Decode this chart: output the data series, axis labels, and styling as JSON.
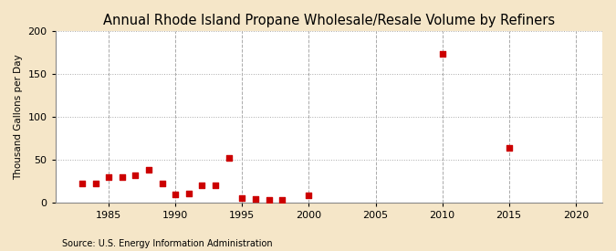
{
  "title": "Annual Rhode Island Propane Wholesale/Resale Volume by Refiners",
  "ylabel": "Thousand Gallons per Day",
  "source": "Source: U.S. Energy Information Administration",
  "background_color": "#f5e6c8",
  "plot_bg_color": "#ffffff",
  "data": [
    [
      1983,
      22
    ],
    [
      1984,
      22
    ],
    [
      1985,
      29
    ],
    [
      1986,
      30
    ],
    [
      1987,
      32
    ],
    [
      1988,
      38
    ],
    [
      1989,
      22
    ],
    [
      1990,
      9
    ],
    [
      1991,
      10
    ],
    [
      1992,
      20
    ],
    [
      1993,
      20
    ],
    [
      1994,
      52
    ],
    [
      1995,
      5
    ],
    [
      1996,
      4
    ],
    [
      1997,
      3
    ],
    [
      1998,
      3
    ],
    [
      2000,
      8
    ],
    [
      2010,
      173
    ],
    [
      2015,
      64
    ]
  ],
  "xlim": [
    1981,
    2022
  ],
  "ylim": [
    0,
    200
  ],
  "xticks": [
    1985,
    1990,
    1995,
    2000,
    2005,
    2010,
    2015,
    2020
  ],
  "yticks": [
    0,
    50,
    100,
    150,
    200
  ],
  "marker_color": "#cc0000",
  "marker": "s",
  "marker_size": 4,
  "hgrid_color": "#aaaaaa",
  "hgrid_style": ":",
  "vgrid_color": "#aaaaaa",
  "vgrid_style": "--",
  "title_fontsize": 10.5,
  "label_fontsize": 7.5,
  "tick_fontsize": 8,
  "source_fontsize": 7
}
